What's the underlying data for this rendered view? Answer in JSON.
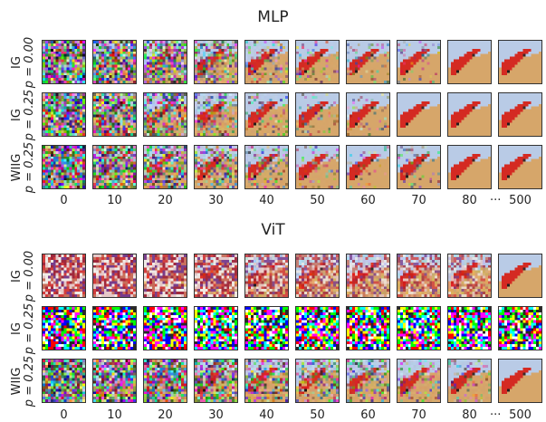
{
  "figure": {
    "panels": [
      {
        "title": "MLP",
        "rows": [
          {
            "method": "IG",
            "param": "p = 0.00",
            "progress": [
              0.0,
              0.12,
              0.28,
              0.5,
              0.78,
              0.92,
              0.97,
              0.99,
              1.0,
              1.0
            ],
            "noise_style": "random"
          },
          {
            "method": "IG",
            "param": "p = 0.25",
            "progress": [
              0.0,
              0.15,
              0.35,
              0.6,
              0.85,
              0.95,
              0.98,
              1.0,
              1.0,
              1.0
            ],
            "noise_style": "random"
          },
          {
            "method": "WIIG",
            "param": "p = 0.25",
            "progress": [
              0.0,
              0.12,
              0.3,
              0.55,
              0.82,
              0.94,
              0.97,
              0.99,
              1.0,
              1.0
            ],
            "noise_style": "random"
          }
        ]
      },
      {
        "title": "ViT",
        "rows": [
          {
            "method": "IG",
            "param": "p = 0.00",
            "progress": [
              0.0,
              0.0,
              0.05,
              0.1,
              0.3,
              0.38,
              0.42,
              0.45,
              0.48,
              1.0
            ],
            "noise_style": "patchy"
          },
          {
            "method": "IG",
            "param": "p = 0.25",
            "progress": [
              0.0,
              0.0,
              0.0,
              0.0,
              0.0,
              0.0,
              0.0,
              0.0,
              0.0,
              0.0
            ],
            "noise_style": "saturated"
          },
          {
            "method": "WIIG",
            "param": "p = 0.25",
            "progress": [
              0.0,
              0.05,
              0.12,
              0.25,
              0.45,
              0.58,
              0.68,
              0.78,
              0.86,
              1.0
            ],
            "noise_style": "random"
          }
        ]
      }
    ],
    "steps": [
      "0",
      "10",
      "20",
      "30",
      "40",
      "50",
      "60",
      "70",
      "80",
      "500"
    ],
    "ellipsis": "···",
    "colors": {
      "car": "#d42a22",
      "sky": "#b9cbe6",
      "ground": "#d6a66a",
      "frame": "#333333"
    }
  }
}
